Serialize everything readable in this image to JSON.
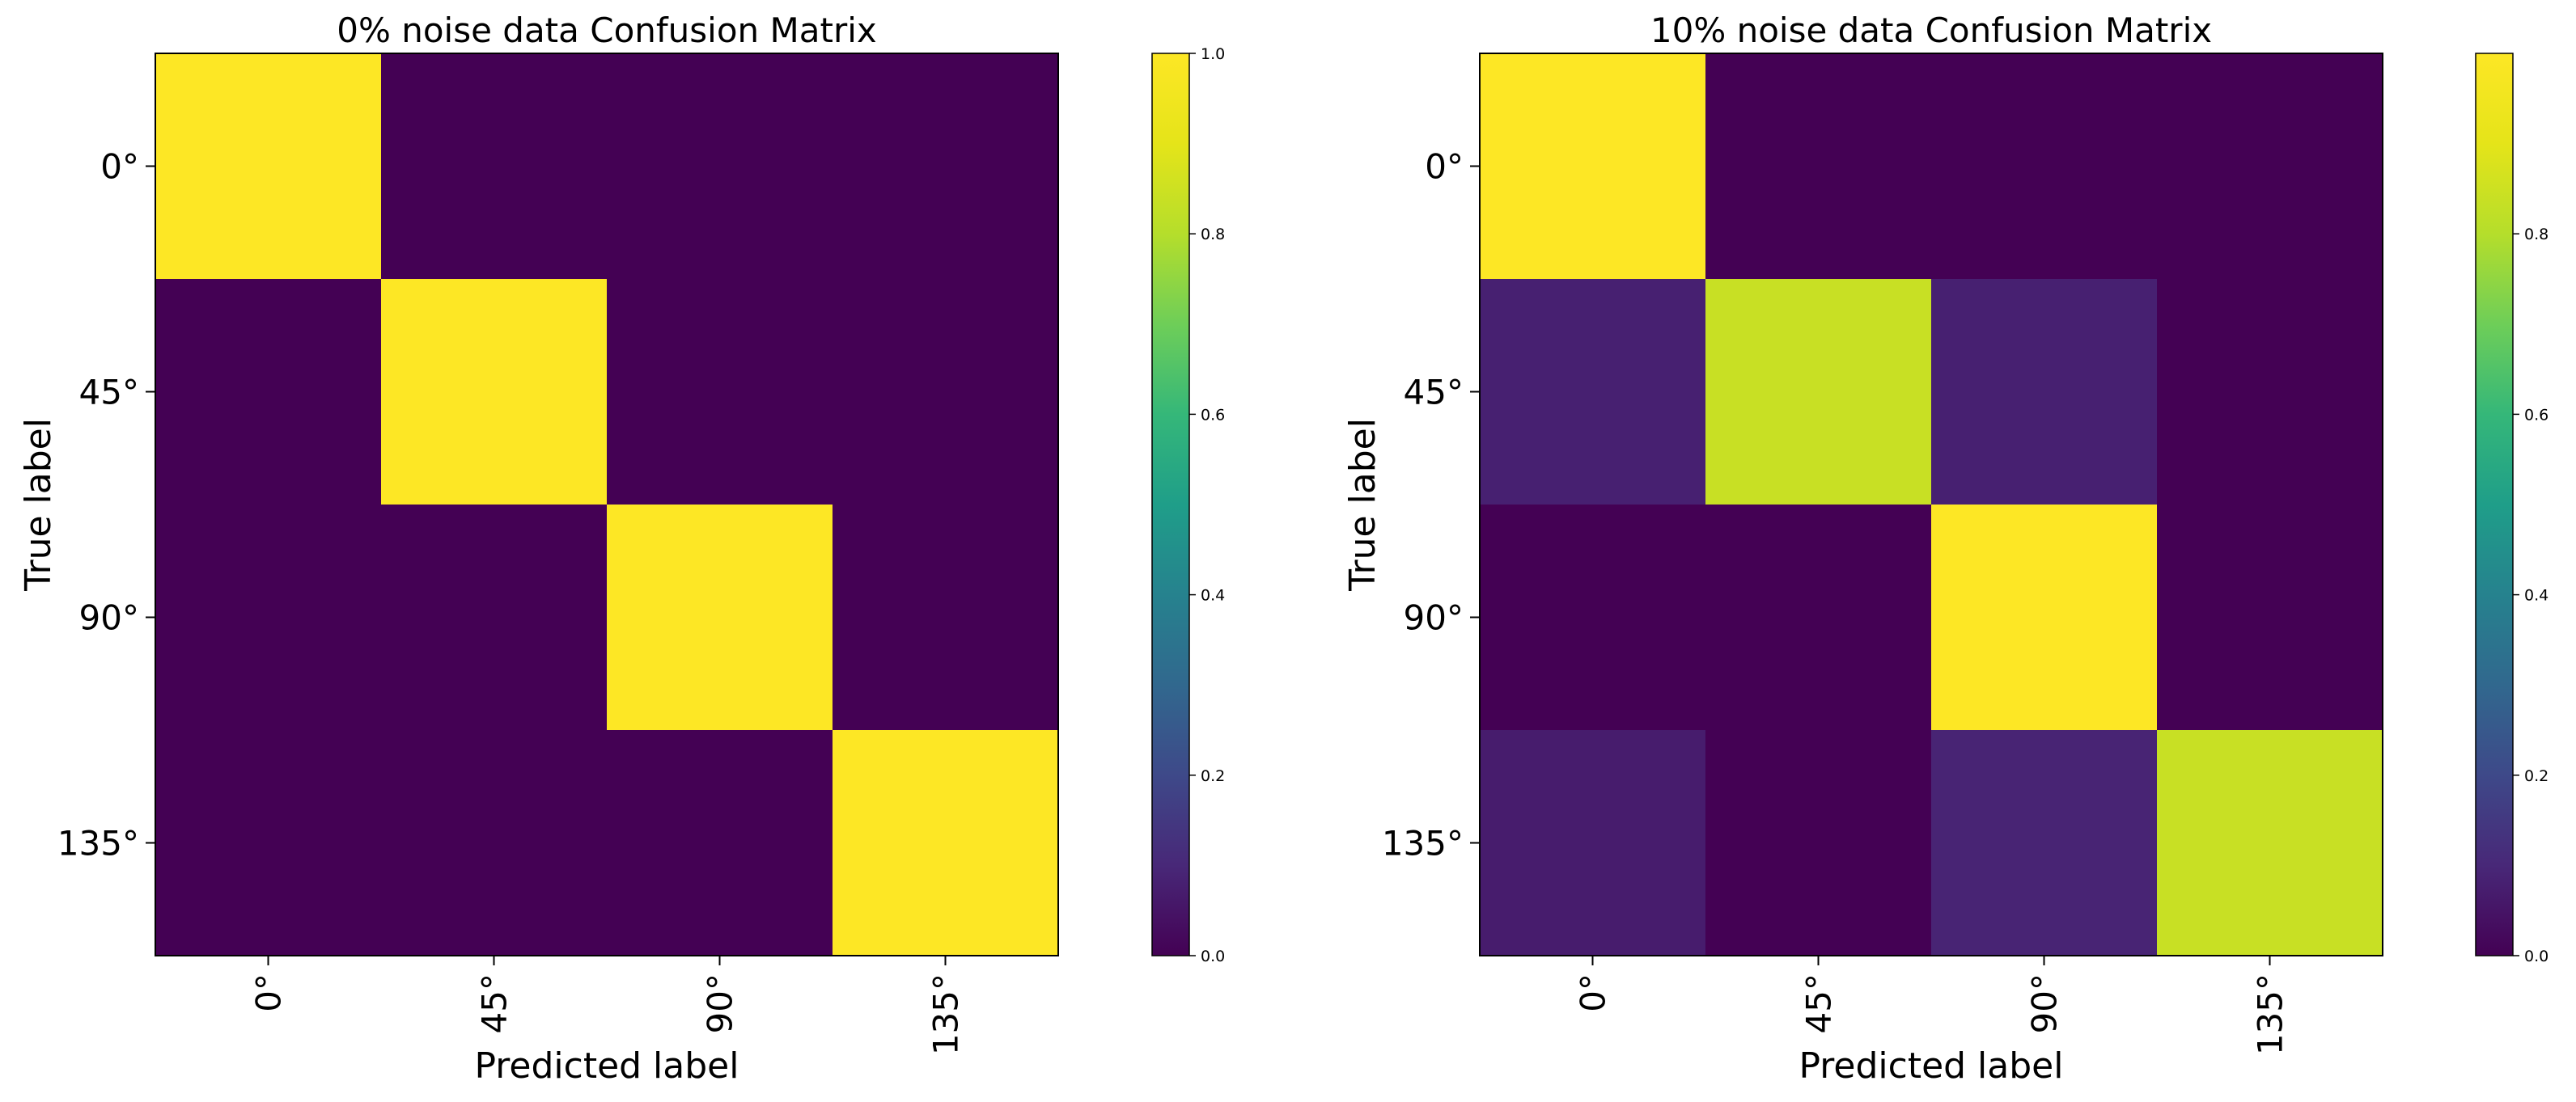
{
  "chart_data": [
    {
      "type": "heatmap",
      "title": "0% noise data Confusion Matrix",
      "xlabel": "Predicted label",
      "ylabel": "True label",
      "x_categories": [
        "0°",
        "45°",
        "90°",
        "135°"
      ],
      "y_categories": [
        "0°",
        "45°",
        "90°",
        "135°"
      ],
      "values": [
        [
          1.0,
          0.0,
          0.0,
          0.0
        ],
        [
          0.0,
          1.0,
          0.0,
          0.0
        ],
        [
          0.0,
          0.0,
          1.0,
          0.0
        ],
        [
          0.0,
          0.0,
          0.0,
          1.0
        ]
      ],
      "colormap": "viridis",
      "color_range": [
        0.0,
        1.0
      ],
      "colorbar": {
        "ticks": [
          0.0,
          0.2,
          0.4,
          0.6,
          0.8,
          1.0
        ],
        "tick_labels": [
          "0.0",
          "0.2",
          "0.4",
          "0.6",
          "0.8",
          "1.0"
        ]
      },
      "grid": false
    },
    {
      "type": "heatmap",
      "title": "10% noise data Confusion Matrix",
      "xlabel": "Predicted label",
      "ylabel": "True label",
      "x_categories": [
        "0°",
        "45°",
        "90°",
        "135°"
      ],
      "y_categories": [
        "0°",
        "45°",
        "90°",
        "135°"
      ],
      "values": [
        [
          1.0,
          0.0,
          0.0,
          0.0
        ],
        [
          0.08,
          0.84,
          0.08,
          0.0
        ],
        [
          0.0,
          0.0,
          1.0,
          0.0
        ],
        [
          0.07,
          0.0,
          0.09,
          0.84
        ]
      ],
      "colormap": "viridis",
      "color_range": [
        0.0,
        1.0
      ],
      "colorbar": {
        "ticks": [
          0.0,
          0.2,
          0.4,
          0.6,
          0.8
        ],
        "tick_labels": [
          "0.0",
          "0.2",
          "0.4",
          "0.6",
          "0.8"
        ]
      },
      "grid": false
    }
  ]
}
